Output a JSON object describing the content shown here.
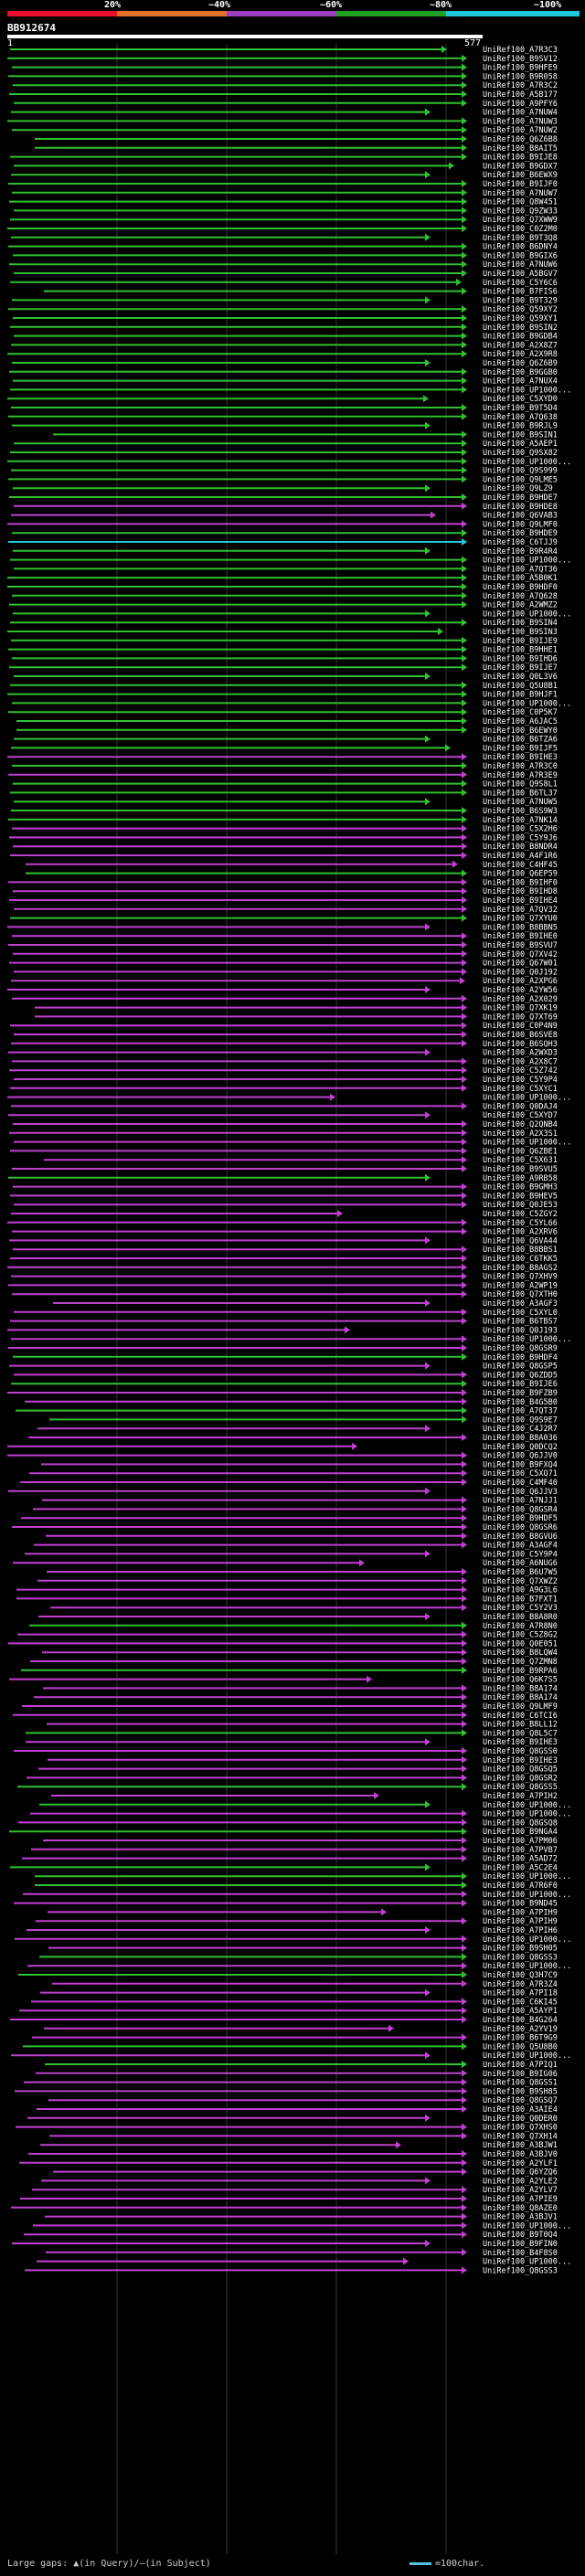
{
  "percent_scale": {
    "labels": [
      "20%",
      "~40%",
      "~60%",
      "~80%",
      "~100%"
    ],
    "colors": [
      "#e8102a",
      "#e0702a",
      "#9b3fc0",
      "#22a022",
      "#1fc8d8"
    ]
  },
  "query": {
    "id": "BB912674",
    "start": "1",
    "end": "577"
  },
  "legend": {
    "gaps_text": "Large gaps: ▲(in Query)/—(in Subject)",
    "scale_text": "=100char."
  },
  "hits": [
    {
      "label": "UniRef100_A7R3C3",
      "c": "g"
    },
    {
      "label": "UniRef100_B9SV12",
      "c": "g"
    },
    {
      "label": "UniRef100_B9HFE9",
      "c": "g"
    },
    {
      "label": "UniRef100_B9R058",
      "c": "g"
    },
    {
      "label": "UniRef100_A7R3C2",
      "c": "g"
    },
    {
      "label": "UniRef100_A5B177",
      "c": "g"
    },
    {
      "label": "UniRef100_A9PFY6",
      "c": "g"
    },
    {
      "label": "UniRef100_A7NUW4",
      "c": "g"
    },
    {
      "label": "UniRef100_A7NUW3",
      "c": "g"
    },
    {
      "label": "UniRef100_A7NUW2",
      "c": "g"
    },
    {
      "label": "UniRef100_Q6Z6B8",
      "c": "g"
    },
    {
      "label": "UniRef100_B8AIT5",
      "c": "g"
    },
    {
      "label": "UniRef100_B9IJE8",
      "c": "g"
    },
    {
      "label": "UniRef100_B9GDX7",
      "c": "g"
    },
    {
      "label": "UniRef100_B6EWX9",
      "c": "g"
    },
    {
      "label": "UniRef100_B9IJF0",
      "c": "g"
    },
    {
      "label": "UniRef100_A7NUW7",
      "c": "g"
    },
    {
      "label": "UniRef100_Q8W451",
      "c": "g"
    },
    {
      "label": "UniRef100_Q9ZW33",
      "c": "g"
    },
    {
      "label": "UniRef100_Q7XWW9",
      "c": "g"
    },
    {
      "label": "UniRef100_C0Z2M0",
      "c": "g"
    },
    {
      "label": "UniRef100_B9T3Q8",
      "c": "g"
    },
    {
      "label": "UniRef100_B6DNY4",
      "c": "g"
    },
    {
      "label": "UniRef100_B9GIX6",
      "c": "g"
    },
    {
      "label": "UniRef100_A7NUW6",
      "c": "g"
    },
    {
      "label": "UniRef100_A5BGV7",
      "c": "g"
    },
    {
      "label": "UniRef100_C5Y6C6",
      "c": "g"
    },
    {
      "label": "UniRef100_B7FIS6",
      "c": "g"
    },
    {
      "label": "UniRef100_B9T329",
      "c": "g"
    },
    {
      "label": "UniRef100_Q59XY2",
      "c": "g"
    },
    {
      "label": "UniRef100_Q59XY1",
      "c": "g"
    },
    {
      "label": "UniRef100_B9SIN2",
      "c": "g"
    },
    {
      "label": "UniRef100_B9GDB4",
      "c": "g"
    },
    {
      "label": "UniRef100_A2X8Z7",
      "c": "g"
    },
    {
      "label": "UniRef100_A2X9R8",
      "c": "g"
    },
    {
      "label": "UniRef100_Q6Z6B9",
      "c": "g"
    },
    {
      "label": "UniRef100_B9GGB0",
      "c": "g"
    },
    {
      "label": "UniRef100_A7NUX4",
      "c": "g"
    },
    {
      "label": "UniRef100_UP1000...",
      "c": "g"
    },
    {
      "label": "UniRef100_C5XYD0",
      "c": "g"
    },
    {
      "label": "UniRef100_B9T5D4",
      "c": "g"
    },
    {
      "label": "UniRef100_A7Q638",
      "c": "g"
    },
    {
      "label": "UniRef100_B9RJL9",
      "c": "g"
    },
    {
      "label": "UniRef100_B9SIN1",
      "c": "g"
    },
    {
      "label": "UniRef100_A5AEP1",
      "c": "g"
    },
    {
      "label": "UniRef100_Q9SX82",
      "c": "g"
    },
    {
      "label": "UniRef100_UP1000...",
      "c": "g"
    },
    {
      "label": "UniRef100_Q9S999",
      "c": "g"
    },
    {
      "label": "UniRef100_Q9LME5",
      "c": "g"
    },
    {
      "label": "UniRef100_Q9LZ9",
      "c": "g"
    },
    {
      "label": "UniRef100_B9HDE7",
      "c": "g"
    },
    {
      "label": "UniRef100_B9HDE8",
      "c": "m"
    },
    {
      "label": "UniRef100_Q6VAB3",
      "c": "m"
    },
    {
      "label": "UniRef100_Q9LMF0",
      "c": "m"
    },
    {
      "label": "UniRef100_B9HDE9",
      "c": "g"
    },
    {
      "label": "UniRef100_C6TJJ9",
      "c": "c"
    },
    {
      "label": "UniRef100_B9R4R4",
      "c": "g"
    },
    {
      "label": "UniRef100_UP1000...",
      "c": "g"
    },
    {
      "label": "UniRef100_A7QT36",
      "c": "g"
    },
    {
      "label": "UniRef100_A5B0K1",
      "c": "g"
    },
    {
      "label": "UniRef100_B9HDF0",
      "c": "g"
    },
    {
      "label": "UniRef100_A7Q628",
      "c": "g"
    },
    {
      "label": "UniRef100_A2WMZ2",
      "c": "g"
    },
    {
      "label": "UniRef100_UP1000...",
      "c": "g"
    },
    {
      "label": "UniRef100_B9SIN4",
      "c": "g"
    },
    {
      "label": "UniRef100_B9SIN3",
      "c": "g"
    },
    {
      "label": "UniRef100_B9IJE9",
      "c": "g"
    },
    {
      "label": "UniRef100_B9HHE1",
      "c": "g"
    },
    {
      "label": "UniRef100_B9IHD6",
      "c": "g"
    },
    {
      "label": "UniRef100_B9IJE7",
      "c": "g"
    },
    {
      "label": "UniRef100_Q0L3V6",
      "c": "g"
    },
    {
      "label": "UniRef100_Q5U8B1",
      "c": "g"
    },
    {
      "label": "UniRef100_B9HJF1",
      "c": "g"
    },
    {
      "label": "UniRef100_UP1000...",
      "c": "g"
    },
    {
      "label": "UniRef100_C0P5K7",
      "c": "g"
    },
    {
      "label": "UniRef100_A6JAC5",
      "c": "g"
    },
    {
      "label": "UniRef100_B6EWY0",
      "c": "g"
    },
    {
      "label": "UniRef100_B6TZA6",
      "c": "g"
    },
    {
      "label": "UniRef100_B9IJF5",
      "c": "g"
    },
    {
      "label": "UniRef100_B9IHE3",
      "c": "m"
    },
    {
      "label": "UniRef100_A7R3C0",
      "c": "g"
    },
    {
      "label": "UniRef100_A7R3E9",
      "c": "m"
    },
    {
      "label": "UniRef100_Q9S8L1",
      "c": "g"
    },
    {
      "label": "UniRef100_B6TL37",
      "c": "g"
    },
    {
      "label": "UniRef100_A7NUW5",
      "c": "g"
    },
    {
      "label": "UniRef100_B6S9W3",
      "c": "g"
    },
    {
      "label": "UniRef100_A7NK14",
      "c": "g"
    },
    {
      "label": "UniRef100_C5X2H6",
      "c": "m"
    },
    {
      "label": "UniRef100_C5Y9J6",
      "c": "m"
    },
    {
      "label": "UniRef100_B8NDR4",
      "c": "m"
    },
    {
      "label": "UniRef100_A4F1R6",
      "c": "m"
    },
    {
      "label": "UniRef100_C4HF45",
      "c": "m"
    },
    {
      "label": "UniRef100_Q6EP59",
      "c": "g"
    },
    {
      "label": "UniRef100_B9IHF0",
      "c": "m"
    },
    {
      "label": "UniRef100_B9IHD8",
      "c": "m"
    },
    {
      "label": "UniRef100_B9IHE4",
      "c": "m"
    },
    {
      "label": "UniRef100_A7QV32",
      "c": "m"
    },
    {
      "label": "UniRef100_Q7XYU0",
      "c": "g"
    },
    {
      "label": "UniRef100_B8BBN5",
      "c": "m"
    },
    {
      "label": "UniRef100_B9IHE0",
      "c": "m"
    },
    {
      "label": "UniRef100_B9SVU7",
      "c": "m"
    },
    {
      "label": "UniRef100_Q7XV42",
      "c": "m"
    },
    {
      "label": "UniRef100_Q67W01",
      "c": "m"
    },
    {
      "label": "UniRef100_Q0J192",
      "c": "m"
    },
    {
      "label": "UniRef100_A2XPG6",
      "c": "m"
    },
    {
      "label": "UniRef100_A2YW56",
      "c": "m"
    },
    {
      "label": "UniRef100_A2X029",
      "c": "m"
    },
    {
      "label": "UniRef100_Q7XK19",
      "c": "m"
    },
    {
      "label": "UniRef100_Q7XT69",
      "c": "m"
    },
    {
      "label": "UniRef100_C0P4N9",
      "c": "m"
    },
    {
      "label": "UniRef100_B6SVE8",
      "c": "m"
    },
    {
      "label": "UniRef100_B6SQH3",
      "c": "m"
    },
    {
      "label": "UniRef100_A2WXD3",
      "c": "m"
    },
    {
      "label": "UniRef100_A2X8C7",
      "c": "m"
    },
    {
      "label": "UniRef100_C5Z742",
      "c": "m"
    },
    {
      "label": "UniRef100_C5Y9P4",
      "c": "m"
    },
    {
      "label": "UniRef100_C5XYC1",
      "c": "m"
    },
    {
      "label": "UniRef100_UP1000...",
      "c": "m"
    },
    {
      "label": "UniRef100_Q0DAJ4",
      "c": "m"
    },
    {
      "label": "UniRef100_C5XYD7",
      "c": "m"
    },
    {
      "label": "UniRef100_Q2QNB4",
      "c": "m"
    },
    {
      "label": "UniRef100_A2X3S1",
      "c": "m"
    },
    {
      "label": "UniRef100_UP1000...",
      "c": "m"
    },
    {
      "label": "UniRef100_Q6ZBE1",
      "c": "m"
    },
    {
      "label": "UniRef100_C5X631",
      "c": "m"
    },
    {
      "label": "UniRef100_B9SVU5",
      "c": "m"
    },
    {
      "label": "UniRef100_A9RB58",
      "c": "g"
    },
    {
      "label": "UniRef100_B9GMH3",
      "c": "m"
    },
    {
      "label": "UniRef100_B9HEV5",
      "c": "m"
    },
    {
      "label": "UniRef100_Q0JE53",
      "c": "m"
    },
    {
      "label": "UniRef100_C5ZGY2",
      "c": "m"
    },
    {
      "label": "UniRef100_C5YL66",
      "c": "m"
    },
    {
      "label": "UniRef100_A2XRV6",
      "c": "m"
    },
    {
      "label": "UniRef100_Q6VA44",
      "c": "m"
    },
    {
      "label": "UniRef100_B8BBS1",
      "c": "m"
    },
    {
      "label": "UniRef100_C6TKK5",
      "c": "m"
    },
    {
      "label": "UniRef100_B8AGS2",
      "c": "m"
    },
    {
      "label": "UniRef100_Q7XHV9",
      "c": "m"
    },
    {
      "label": "UniRef100_A2WP19",
      "c": "m"
    },
    {
      "label": "UniRef100_Q7XTH0",
      "c": "m"
    },
    {
      "label": "UniRef100_A3AGF3",
      "c": "m"
    },
    {
      "label": "UniRef100_C5XYL0",
      "c": "m"
    },
    {
      "label": "UniRef100_B6TBS7",
      "c": "m"
    },
    {
      "label": "UniRef100_Q0J193",
      "c": "m"
    },
    {
      "label": "UniRef100_UP1000...",
      "c": "m"
    },
    {
      "label": "UniRef100_Q8GSR9",
      "c": "m"
    },
    {
      "label": "UniRef100_B9HDF4",
      "c": "g"
    },
    {
      "label": "UniRef100_Q8GSP5",
      "c": "m"
    },
    {
      "label": "UniRef100_Q6ZDD5",
      "c": "m"
    },
    {
      "label": "UniRef100_B9IJE6",
      "c": "g"
    },
    {
      "label": "UniRef100_B9FZB9",
      "c": "m"
    },
    {
      "label": "UniRef100_B4G5B0",
      "c": "m"
    },
    {
      "label": "UniRef100_A7QT37",
      "c": "g"
    },
    {
      "label": "UniRef100_Q9S9E7",
      "c": "g"
    },
    {
      "label": "UniRef100_C4J2R7",
      "c": "m"
    },
    {
      "label": "UniRef100_B8A036",
      "c": "m"
    },
    {
      "label": "UniRef100_Q0DCQ2",
      "c": "m"
    },
    {
      "label": "UniRef100_Q6JJV0",
      "c": "m"
    },
    {
      "label": "UniRef100_B9FXQ4",
      "c": "m"
    },
    {
      "label": "UniRef100_C5XQ71",
      "c": "m"
    },
    {
      "label": "UniRef100_C4MF40",
      "c": "m"
    },
    {
      "label": "UniRef100_Q6JJV3",
      "c": "m"
    },
    {
      "label": "UniRef100_A7NJJ1",
      "c": "m"
    },
    {
      "label": "UniRef100_Q8GSR4",
      "c": "m"
    },
    {
      "label": "UniRef100_B9HDF5",
      "c": "m"
    },
    {
      "label": "UniRef100_Q8GSR6",
      "c": "m"
    },
    {
      "label": "UniRef100_B8GVU6",
      "c": "m"
    },
    {
      "label": "UniRef100_A3AGF4",
      "c": "m"
    },
    {
      "label": "UniRef100_C5Y9P4",
      "c": "m"
    },
    {
      "label": "UniRef100_A6NUG6",
      "c": "m"
    },
    {
      "label": "UniRef100_B6U7W5",
      "c": "m"
    },
    {
      "label": "UniRef100_Q7XWZ2",
      "c": "m"
    },
    {
      "label": "UniRef100_A9G3L6",
      "c": "m"
    },
    {
      "label": "UniRef100_B7FXT1",
      "c": "m"
    },
    {
      "label": "UniRef100_C5Y2V3",
      "c": "m"
    },
    {
      "label": "UniRef100_B8A8R0",
      "c": "m"
    },
    {
      "label": "UniRef100_A7R8N0",
      "c": "g"
    },
    {
      "label": "UniRef100_C5Z8G2",
      "c": "m"
    },
    {
      "label": "UniRef100_Q0E051",
      "c": "m"
    },
    {
      "label": "UniRef100_B8LQW4",
      "c": "m"
    },
    {
      "label": "UniRef100_Q7ZMN8",
      "c": "m"
    },
    {
      "label": "UniRef100_B9RPA6",
      "c": "g"
    },
    {
      "label": "UniRef100_Q6K7S5",
      "c": "m"
    },
    {
      "label": "UniRef100_B8A174",
      "c": "m"
    },
    {
      "label": "UniRef100_B8A174",
      "c": "m"
    },
    {
      "label": "UniRef100_Q9LMF9",
      "c": "m"
    },
    {
      "label": "UniRef100_C6TCI6",
      "c": "m"
    },
    {
      "label": "UniRef100_B8LL12",
      "c": "m"
    },
    {
      "label": "UniRef100_Q8L5C7",
      "c": "g"
    },
    {
      "label": "UniRef100_B9IHE3",
      "c": "m"
    },
    {
      "label": "UniRef100_Q8GSS0",
      "c": "m"
    },
    {
      "label": "UniRef100_B9IHE3",
      "c": "m"
    },
    {
      "label": "UniRef100_Q8GSQ5",
      "c": "m"
    },
    {
      "label": "UniRef100_Q8GSR2",
      "c": "m"
    },
    {
      "label": "UniRef100_Q8GSS5",
      "c": "g"
    },
    {
      "label": "UniRef100_A7PIH2",
      "c": "m"
    },
    {
      "label": "UniRef100_UP1000...",
      "c": "g"
    },
    {
      "label": "UniRef100_UP1000...",
      "c": "m"
    },
    {
      "label": "UniRef100_Q8GSQ8",
      "c": "m"
    },
    {
      "label": "UniRef100_B9NGA4",
      "c": "g"
    },
    {
      "label": "UniRef100_A7PM06",
      "c": "m"
    },
    {
      "label": "UniRef100_A7PVB7",
      "c": "m"
    },
    {
      "label": "UniRef100_A5AD72",
      "c": "m"
    },
    {
      "label": "UniRef100_A5C2E4",
      "c": "g"
    },
    {
      "label": "UniRef100_UP1000...",
      "c": "g"
    },
    {
      "label": "UniRef100_A7R6F0",
      "c": "g"
    },
    {
      "label": "UniRef100_UP1000...",
      "c": "m"
    },
    {
      "label": "UniRef100_B9ND45",
      "c": "m"
    },
    {
      "label": "UniRef100_A7PIH9",
      "c": "m"
    },
    {
      "label": "UniRef100_A7PIH9",
      "c": "m"
    },
    {
      "label": "UniRef100_A7PIH6",
      "c": "m"
    },
    {
      "label": "UniRef100_UP1000...",
      "c": "m"
    },
    {
      "label": "UniRef100_B9SH05",
      "c": "m"
    },
    {
      "label": "UniRef100_Q8GSS3",
      "c": "g"
    },
    {
      "label": "UniRef100_UP1000...",
      "c": "m"
    },
    {
      "label": "UniRef100_Q3H7C9",
      "c": "g"
    },
    {
      "label": "UniRef100_A7R3Z4",
      "c": "m"
    },
    {
      "label": "UniRef100_A7PI18",
      "c": "m"
    },
    {
      "label": "UniRef100_C6KI45",
      "c": "m"
    },
    {
      "label": "UniRef100_A5AYP1",
      "c": "m"
    },
    {
      "label": "UniRef100_B4G264",
      "c": "m"
    },
    {
      "label": "UniRef100_A2YV19",
      "c": "m"
    },
    {
      "label": "UniRef100_B6T9G9",
      "c": "m"
    },
    {
      "label": "UniRef100_Q5U8B0",
      "c": "g"
    },
    {
      "label": "UniRef100_UP1000...",
      "c": "m"
    },
    {
      "label": "UniRef100_A7PIQ1",
      "c": "g"
    },
    {
      "label": "UniRef100_B9IG06",
      "c": "m"
    },
    {
      "label": "UniRef100_Q8GSS1",
      "c": "m"
    },
    {
      "label": "UniRef100_B9SH85",
      "c": "m"
    },
    {
      "label": "UniRef100_Q8GSQ7",
      "c": "m"
    },
    {
      "label": "UniRef100_A3AIE4",
      "c": "m"
    },
    {
      "label": "UniRef100_Q0DER0",
      "c": "m"
    },
    {
      "label": "UniRef100_Q7XHS0",
      "c": "m"
    },
    {
      "label": "UniRef100_Q7XH14",
      "c": "m"
    },
    {
      "label": "UniRef100_A3BJW1",
      "c": "m"
    },
    {
      "label": "UniRef100_A3BJV0",
      "c": "m"
    },
    {
      "label": "UniRef100_A2YLF1",
      "c": "m"
    },
    {
      "label": "UniRef100_Q6YZQ6",
      "c": "m"
    },
    {
      "label": "UniRef100_A2YLE2",
      "c": "m"
    },
    {
      "label": "UniRef100_A2YLV7",
      "c": "m"
    },
    {
      "label": "UniRef100_A7PIE9",
      "c": "m"
    },
    {
      "label": "UniRef100_Q8AZE0",
      "c": "m"
    },
    {
      "label": "UniRef100_A3BJV1",
      "c": "m"
    },
    {
      "label": "UniRef100_UP1000...",
      "c": "m"
    },
    {
      "label": "UniRef100_B9T0Q4",
      "c": "m"
    },
    {
      "label": "UniRef100_B9FIN0",
      "c": "m"
    },
    {
      "label": "UniRef100_B4F8S0",
      "c": "m"
    },
    {
      "label": "UniRef100_UP1000...",
      "c": "m"
    },
    {
      "label": "UniRef100_Q8GSS3",
      "c": "m"
    }
  ]
}
